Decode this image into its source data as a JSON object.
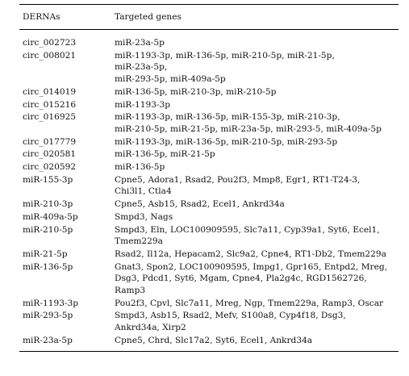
{
  "table": {
    "headers": {
      "col1": "DERNAs",
      "col2": "Targeted genes"
    },
    "rows": [
      {
        "name": "circ_002723",
        "genes": [
          "miR-23a-5p"
        ]
      },
      {
        "name": "circ_008021",
        "genes": [
          "miR-1193-3p, miR-136-5p, miR-210-5p, miR-21-5p,",
          "miR-23a-5p,",
          "miR-293-5p, miR-409a-5p"
        ]
      },
      {
        "name": "circ_014019",
        "genes": [
          "miR-136-5p, miR-210-3p, miR-210-5p"
        ]
      },
      {
        "name": "circ_015216",
        "genes": [
          "miR-1193-3p"
        ]
      },
      {
        "name": "circ_016925",
        "genes": [
          "miR-1193-3p, miR-136-5p, miR-155-3p, miR-210-3p,",
          "miR-210-5p, miR-21-5p, miR-23a-5p, miR-293-5, miR-409a-5p"
        ]
      },
      {
        "name": "circ_017779",
        "genes": [
          "miR-1193-3p, miR-136-5p, miR-210-5p, miR-293-5p"
        ]
      },
      {
        "name": "circ_020581",
        "genes": [
          "miR-136-5p, miR-21-5p"
        ]
      },
      {
        "name": "circ_020592",
        "genes": [
          "miR-136-5p"
        ]
      },
      {
        "name": "miR-155-3p",
        "genes": [
          "Cpne5, Adora1, Rsad2, Pou2f3, Mmp8, Egr1, RT1-T24-3,",
          "Chi3l1, Ctla4"
        ]
      },
      {
        "name": "miR-210-3p",
        "genes": [
          "Cpne5, Asb15, Rsad2, Ecel1, Ankrd34a"
        ]
      },
      {
        "name": "miR-409a-5p",
        "genes": [
          "Smpd3, Nags"
        ]
      },
      {
        "name": "miR-210-5p",
        "genes": [
          "Smpd3, Eln, LOC100909595, Slc7a11, Cyp39a1, Syt6, Ecel1,",
          "Tmem229a"
        ]
      },
      {
        "name": "miR-21-5p",
        "genes": [
          "Rsad2, Il12a, Hepacam2, Slc9a2, Cpne4, RT1-Db2, Tmem229a"
        ]
      },
      {
        "name": "miR-136-5p",
        "genes": [
          "Gnat3, Spon2, LOC100909595, Impg1, Gpr165, Entpd2, Mreg,",
          "Dsg3, Pdcd1, Syt6, Mgam, Cpne4, Pla2g4c, RGD1562726,",
          "Ramp3"
        ]
      },
      {
        "name": "miR-1193-3p",
        "genes": [
          "Pou2f3, Cpvl, Slc7a11, Mreg, Ngp, Tmem229a, Ramp3, Oscar"
        ]
      },
      {
        "name": "miR-293-5p",
        "genes": [
          "Smpd3, Asb15, Rsad2, Mefv, S100a8, Cyp4f18, Dsg3,",
          "Ankrd34a, Xirp2"
        ]
      },
      {
        "name": "miR-23a-5p",
        "genes": [
          "Cpne5, Chrd, Slc17a2, Syt6, Ecel1, Ankrd34a"
        ]
      }
    ]
  }
}
